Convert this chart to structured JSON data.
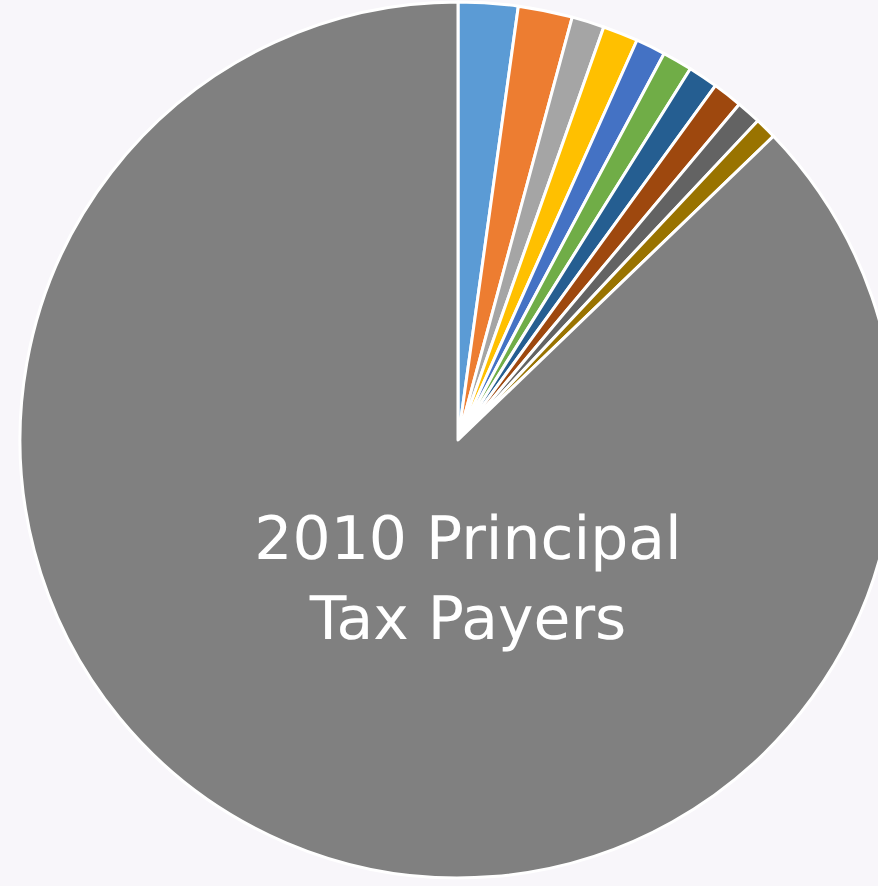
{
  "chart_data": {
    "type": "pie",
    "title": "2010 Principal\nTax Payers",
    "categories": [
      null,
      null,
      null,
      null,
      null,
      null,
      null,
      null,
      null,
      null,
      null
    ],
    "values": [
      2.2,
      2.0,
      1.2,
      1.3,
      1.1,
      1.1,
      1.1,
      1.1,
      0.9,
      0.8,
      87.2
    ],
    "colors": [
      "#5b9bd5",
      "#ed7d31",
      "#a5a5a5",
      "#ffc000",
      "#4472c4",
      "#70ad47",
      "#255e91",
      "#9e480e",
      "#636363",
      "#997300",
      "#808080"
    ]
  }
}
